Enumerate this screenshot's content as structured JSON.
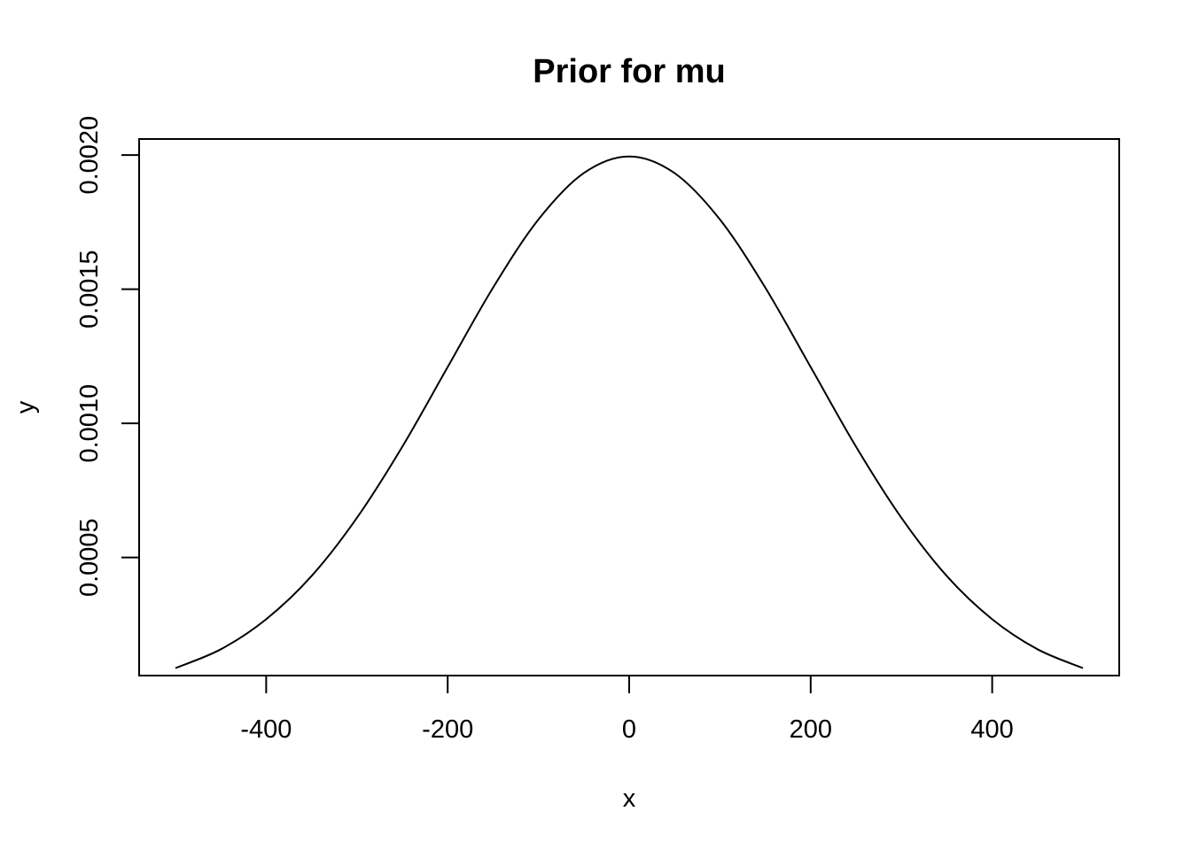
{
  "chart_data": {
    "type": "line",
    "title": "Prior for mu",
    "xlabel": "x",
    "ylabel": "y",
    "xlim": [
      -540,
      540
    ],
    "ylim": [
      6e-05,
      0.00206
    ],
    "x_ticks": [
      -400,
      -200,
      0,
      200,
      400
    ],
    "x_tick_labels": [
      "-400",
      "-200",
      "0",
      "200",
      "400"
    ],
    "y_ticks": [
      0.0005,
      0.001,
      0.0015,
      0.002
    ],
    "y_tick_labels": [
      "0.0005",
      "0.0010",
      "0.0015",
      "0.0020"
    ],
    "grid": false,
    "legend": "none",
    "line_color": "#000000",
    "series": [
      {
        "x": [
          -500,
          -450,
          -400,
          -350,
          -300,
          -250,
          -200,
          -150,
          -100,
          -50,
          0,
          50,
          100,
          150,
          200,
          250,
          300,
          350,
          400,
          450,
          500
        ],
        "y": [
          8.8e-05,
          0.000158,
          0.00027,
          0.000431,
          0.000648,
          0.000913,
          0.00121,
          0.001506,
          0.00176,
          0.001933,
          0.001995,
          0.001933,
          0.00176,
          0.001506,
          0.00121,
          0.000913,
          0.000648,
          0.000431,
          0.00027,
          0.000158,
          8.8e-05
        ]
      }
    ]
  }
}
